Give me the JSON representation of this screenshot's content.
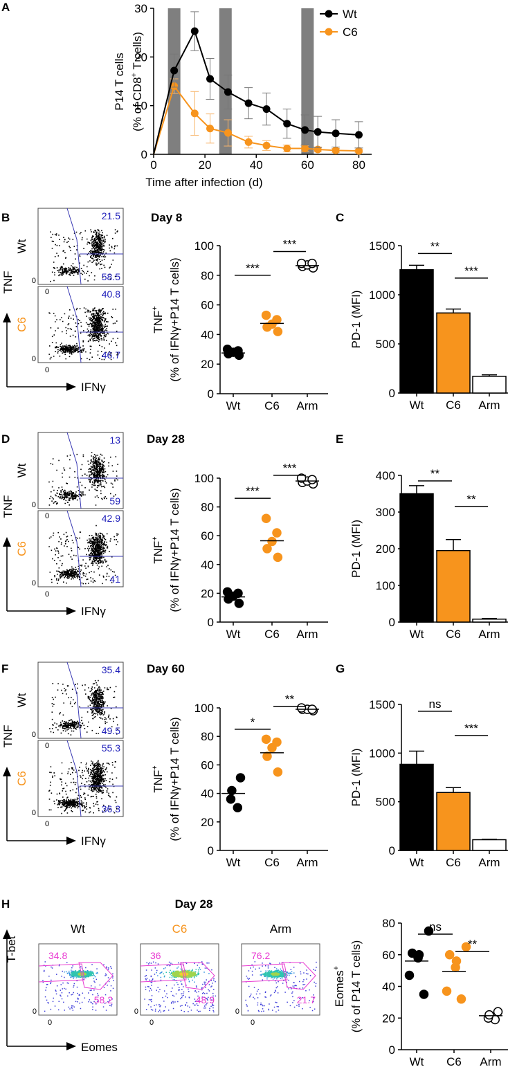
{
  "colors": {
    "wt": "#000000",
    "c6": "#f7941d",
    "gate": "#3a3ab4",
    "quad": "#2222bb",
    "pink": "#e83ad1",
    "shade": "#7f7f7f",
    "err": "#888888"
  },
  "chart_data": [
    {
      "panel": "A",
      "type": "line",
      "title": "",
      "xlabel": "Time after infection (d)",
      "ylabel_line1": "P14 T cells",
      "ylabel_line2_pre": "(% of CD8",
      "ylabel_line2_sup": "+",
      "ylabel_line2_post": " T cells)",
      "xlim": [
        0,
        85
      ],
      "ylim": [
        0,
        30
      ],
      "xticks": [
        0,
        20,
        40,
        60,
        80
      ],
      "yticks": [
        0,
        10,
        20,
        30
      ],
      "shaded_days": [
        8,
        28,
        60
      ],
      "series": [
        {
          "name": "Wt",
          "color": "#000000",
          "x": [
            0,
            8,
            16,
            22,
            29,
            37,
            44,
            52,
            59,
            64,
            71,
            80
          ],
          "y": [
            0,
            17.2,
            25.3,
            15.5,
            12.8,
            10.5,
            9.3,
            6.3,
            5.0,
            4.6,
            4.3,
            4.0
          ],
          "err": [
            0,
            3.4,
            4.0,
            4.2,
            3.5,
            3.2,
            3.3,
            3.0,
            3.1,
            3.2,
            2.8,
            2.7
          ]
        },
        {
          "name": "C6",
          "color": "#f7941d",
          "x": [
            0,
            8,
            16,
            22,
            29,
            37,
            44,
            52,
            59,
            64,
            71,
            80
          ],
          "y": [
            0,
            14.0,
            8.4,
            5.3,
            4.4,
            2.5,
            1.8,
            1.2,
            1.2,
            1.0,
            0.8,
            0.7
          ],
          "err": [
            0,
            1.5,
            4.5,
            3.0,
            2.7,
            1.2,
            1.0,
            0.7,
            0.6,
            0.5,
            0.4,
            0.3
          ]
        }
      ]
    },
    {
      "panel": "B",
      "type": "scatter",
      "subtype": "flow-quadrant",
      "title": "Day 8",
      "xlabel": "IFNγ",
      "ylabel": "TNF",
      "rows": [
        {
          "label": "Wt",
          "upper": "21.5",
          "lower": "58.5",
          "zero_x": "0",
          "zero_y": "0"
        },
        {
          "label": "C6",
          "upper": "40.8",
          "lower": "46.7",
          "zero_x": "0",
          "zero_y": "0"
        }
      ]
    },
    {
      "panel": "",
      "type": "scatter",
      "subtype": "dot-plot",
      "title": "Day 8",
      "ylabel_line1": "TNF",
      "ylabel_line1_sup": "+",
      "ylabel_line2": "(% of IFNγ+P14 T cells)",
      "categories": [
        "Wt",
        "C6",
        "Arm"
      ],
      "ylim": [
        0,
        100
      ],
      "yticks": [
        0,
        20,
        40,
        60,
        80,
        100
      ],
      "points": [
        [
          26,
          27,
          28,
          29,
          30
        ],
        [
          42,
          45,
          47,
          50,
          53
        ],
        [
          85,
          86,
          87,
          88,
          88
        ]
      ],
      "means": [
        27.5,
        47.5,
        86.5
      ],
      "significance": [
        {
          "from": 0,
          "to": 1,
          "label": "***",
          "y": 80
        },
        {
          "from": 1,
          "to": 2,
          "label": "***",
          "y": 96
        }
      ]
    },
    {
      "panel": "C",
      "type": "bar",
      "categories": [
        "Wt",
        "C6",
        "Arm"
      ],
      "values": [
        1255,
        815,
        170
      ],
      "errors": [
        45,
        40,
        15
      ],
      "ylabel": "PD-1 (MFI)",
      "ylim": [
        0,
        1500
      ],
      "yticks": [
        0,
        500,
        1000,
        1500
      ],
      "significance": [
        {
          "from": 0,
          "to": 1,
          "label": "**",
          "y": 1420
        },
        {
          "from": 1,
          "to": 2,
          "label": "***",
          "y": 1170
        }
      ]
    },
    {
      "panel": "D",
      "type": "scatter",
      "subtype": "flow-quadrant",
      "title": "Day 28",
      "xlabel": "IFNγ",
      "ylabel": "TNF",
      "rows": [
        {
          "label": "Wt",
          "upper": "13",
          "lower": "59",
          "zero_x": "0",
          "zero_y": "0"
        },
        {
          "label": "C6",
          "upper": "42.9",
          "lower": "41",
          "zero_x": "0",
          "zero_y": "0"
        }
      ]
    },
    {
      "panel": "",
      "type": "scatter",
      "subtype": "dot-plot",
      "title": "Day 28",
      "ylabel_line1": "TNF",
      "ylabel_line1_sup": "+",
      "ylabel_line2": "(% of IFNγ+P14 T cells)",
      "categories": [
        "Wt",
        "C6",
        "Arm"
      ],
      "ylim": [
        0,
        100
      ],
      "yticks": [
        0,
        20,
        40,
        60,
        80,
        100
      ],
      "points": [
        [
          13,
          16,
          18,
          20,
          21
        ],
        [
          45,
          51,
          56,
          62,
          72
        ],
        [
          96,
          97,
          98,
          99,
          100
        ]
      ],
      "means": [
        17.5,
        56.5,
        98
      ],
      "significance": [
        {
          "from": 0,
          "to": 1,
          "label": "***",
          "y": 86
        },
        {
          "from": 1,
          "to": 2,
          "label": "***",
          "y": 102
        }
      ]
    },
    {
      "panel": "E",
      "type": "bar",
      "categories": [
        "Wt",
        "C6",
        "Arm"
      ],
      "values": [
        350,
        195,
        8
      ],
      "errors": [
        22,
        30,
        2
      ],
      "ylabel": "PD-1 (MFI)",
      "ylim": [
        0,
        400
      ],
      "yticks": [
        0,
        100,
        200,
        300,
        400
      ],
      "significance": [
        {
          "from": 0,
          "to": 1,
          "label": "**",
          "y": 385
        },
        {
          "from": 1,
          "to": 2,
          "label": "**",
          "y": 315
        }
      ]
    },
    {
      "panel": "F",
      "type": "scatter",
      "subtype": "flow-quadrant",
      "title": "Day 60",
      "xlabel": "IFNγ",
      "ylabel": "TNF",
      "rows": [
        {
          "label": "Wt",
          "upper": "35.4",
          "lower": "49.5",
          "zero_x": "0",
          "zero_y": "0"
        },
        {
          "label": "C6",
          "upper": "55.3",
          "lower": "36.3",
          "zero_x": "0",
          "zero_y": "0"
        }
      ]
    },
    {
      "panel": "",
      "type": "scatter",
      "subtype": "dot-plot",
      "title": "Day 60",
      "ylabel_line1": "TNF",
      "ylabel_line1_sup": "+",
      "ylabel_line2": "(% of IFNγ+P14 T cells)",
      "categories": [
        "Wt",
        "C6",
        "Arm"
      ],
      "ylim": [
        0,
        100
      ],
      "yticks": [
        0,
        20,
        40,
        60,
        80,
        100
      ],
      "points": [
        [
          30,
          36,
          42,
          51
        ],
        [
          55,
          66,
          72,
          76,
          78
        ],
        [
          98,
          99,
          99,
          99,
          100
        ]
      ],
      "means": [
        40,
        68.5,
        99
      ],
      "significance": [
        {
          "from": 0,
          "to": 1,
          "label": "*",
          "y": 85
        },
        {
          "from": 1,
          "to": 2,
          "label": "**",
          "y": 101
        }
      ]
    },
    {
      "panel": "G",
      "type": "bar",
      "categories": [
        "Wt",
        "C6",
        "Arm"
      ],
      "values": [
        885,
        595,
        110
      ],
      "errors": [
        135,
        50,
        5
      ],
      "ylabel": "PD-1 (MFI)",
      "ylim": [
        0,
        1500
      ],
      "yticks": [
        0,
        500,
        1000,
        1500
      ],
      "significance": [
        {
          "from": 0,
          "to": 1,
          "label": "ns",
          "y": 1430
        },
        {
          "from": 1,
          "to": 2,
          "label": "***",
          "y": 1180
        }
      ]
    },
    {
      "panel": "H",
      "type": "heatmap",
      "subtype": "flow-density",
      "title": "Day 28",
      "xlabel": "Eomes",
      "ylabel": "T-bet",
      "plots": [
        {
          "label": "Wt",
          "left": "34.8",
          "right": "58.2",
          "zero_x": "0",
          "zero_y": "0"
        },
        {
          "label": "C6",
          "left": "36",
          "right": "48.9",
          "zero_x": "0",
          "zero_y": "0"
        },
        {
          "label": "Arm",
          "left": "76.2",
          "right": "21.7",
          "zero_x": "0",
          "zero_y": "0"
        }
      ]
    },
    {
      "panel": "",
      "type": "scatter",
      "subtype": "dot-plot",
      "ylabel_line1": "Eomes",
      "ylabel_line1_sup": "+",
      "ylabel_line2": "(% of P14 T cells)",
      "categories": [
        "Wt",
        "C6",
        "Arm"
      ],
      "ylim": [
        0,
        80
      ],
      "yticks": [
        0,
        20,
        40,
        60,
        80
      ],
      "points": [
        [
          35,
          47,
          58,
          60,
          61,
          75
        ],
        [
          32,
          37,
          52,
          56,
          60,
          65
        ],
        [
          19,
          20,
          22,
          24
        ]
      ],
      "means": [
        56,
        49.5,
        21.5
      ],
      "significance": [
        {
          "from": 0,
          "to": 1,
          "label": "ns",
          "y": 73
        },
        {
          "from": 1,
          "to": 2,
          "label": "**",
          "y": 62
        }
      ]
    }
  ]
}
